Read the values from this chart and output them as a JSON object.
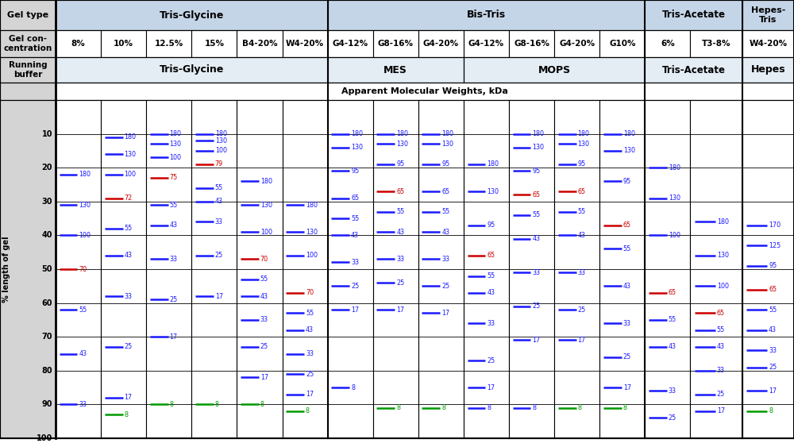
{
  "header_row1_cols": [
    "8%",
    "10%",
    "12.5%",
    "15%",
    "B4-20%",
    "W4-20%",
    "G4-12%",
    "G8-16%",
    "G4-20%",
    "G4-12%",
    "G8-16%",
    "G4-20%",
    "G10%",
    "6%",
    "T3-8%",
    "W4-20%"
  ],
  "y_ticks": [
    10,
    20,
    30,
    40,
    50,
    60,
    70,
    80,
    90,
    100
  ],
  "columns": {
    "8pct": {
      "bands": [
        {
          "y": 22,
          "kDa": 180,
          "c": "b"
        },
        {
          "y": 31,
          "kDa": 130,
          "c": "b"
        },
        {
          "y": 40,
          "kDa": 100,
          "c": "b"
        },
        {
          "y": 50,
          "kDa": 70,
          "c": "r"
        },
        {
          "y": 62,
          "kDa": 55,
          "c": "b"
        },
        {
          "y": 75,
          "kDa": 43,
          "c": "b"
        },
        {
          "y": 90,
          "kDa": 33,
          "c": "b"
        }
      ]
    },
    "10pct": {
      "bands": [
        {
          "y": 11,
          "kDa": 180,
          "c": "b"
        },
        {
          "y": 16,
          "kDa": 130,
          "c": "b"
        },
        {
          "y": 22,
          "kDa": 100,
          "c": "b"
        },
        {
          "y": 29,
          "kDa": 72,
          "c": "r"
        },
        {
          "y": 38,
          "kDa": 55,
          "c": "b"
        },
        {
          "y": 46,
          "kDa": 43,
          "c": "b"
        },
        {
          "y": 58,
          "kDa": 33,
          "c": "b"
        },
        {
          "y": 73,
          "kDa": 25,
          "c": "b"
        },
        {
          "y": 88,
          "kDa": 17,
          "c": "b"
        },
        {
          "y": 93,
          "kDa": 8,
          "c": "g"
        }
      ]
    },
    "12.5pct": {
      "bands": [
        {
          "y": 10,
          "kDa": 180,
          "c": "b"
        },
        {
          "y": 13,
          "kDa": 130,
          "c": "b"
        },
        {
          "y": 17,
          "kDa": 100,
          "c": "b"
        },
        {
          "y": 23,
          "kDa": 75,
          "c": "r"
        },
        {
          "y": 31,
          "kDa": 55,
          "c": "b"
        },
        {
          "y": 37,
          "kDa": 43,
          "c": "b"
        },
        {
          "y": 47,
          "kDa": 33,
          "c": "b"
        },
        {
          "y": 59,
          "kDa": 25,
          "c": "b"
        },
        {
          "y": 70,
          "kDa": 17,
          "c": "b"
        },
        {
          "y": 90,
          "kDa": 8,
          "c": "g"
        }
      ]
    },
    "15pct": {
      "bands": [
        {
          "y": 10,
          "kDa": 180,
          "c": "b"
        },
        {
          "y": 12,
          "kDa": 130,
          "c": "b"
        },
        {
          "y": 15,
          "kDa": 100,
          "c": "b"
        },
        {
          "y": 19,
          "kDa": 79,
          "c": "r"
        },
        {
          "y": 26,
          "kDa": 55,
          "c": "b"
        },
        {
          "y": 30,
          "kDa": 43,
          "c": "b"
        },
        {
          "y": 36,
          "kDa": 33,
          "c": "b"
        },
        {
          "y": 46,
          "kDa": 25,
          "c": "b"
        },
        {
          "y": 58,
          "kDa": 17,
          "c": "b"
        },
        {
          "y": 90,
          "kDa": 8,
          "c": "g"
        }
      ]
    },
    "B4-20pct": {
      "bands": [
        {
          "y": 24,
          "kDa": 180,
          "c": "b"
        },
        {
          "y": 31,
          "kDa": 130,
          "c": "b"
        },
        {
          "y": 39,
          "kDa": 100,
          "c": "b"
        },
        {
          "y": 47,
          "kDa": 70,
          "c": "r"
        },
        {
          "y": 53,
          "kDa": 55,
          "c": "b"
        },
        {
          "y": 58,
          "kDa": 43,
          "c": "b"
        },
        {
          "y": 65,
          "kDa": 33,
          "c": "b"
        },
        {
          "y": 73,
          "kDa": 25,
          "c": "b"
        },
        {
          "y": 82,
          "kDa": 17,
          "c": "b"
        },
        {
          "y": 90,
          "kDa": 8,
          "c": "g"
        }
      ]
    },
    "W4-20pct_tg": {
      "bands": [
        {
          "y": 31,
          "kDa": 180,
          "c": "b"
        },
        {
          "y": 39,
          "kDa": 130,
          "c": "b"
        },
        {
          "y": 46,
          "kDa": 100,
          "c": "b"
        },
        {
          "y": 57,
          "kDa": 70,
          "c": "r"
        },
        {
          "y": 63,
          "kDa": 55,
          "c": "b"
        },
        {
          "y": 68,
          "kDa": 43,
          "c": "b"
        },
        {
          "y": 75,
          "kDa": 33,
          "c": "b"
        },
        {
          "y": 81,
          "kDa": 25,
          "c": "b"
        },
        {
          "y": 87,
          "kDa": 17,
          "c": "b"
        },
        {
          "y": 92,
          "kDa": 8,
          "c": "g"
        }
      ]
    },
    "G4-12_mes": {
      "bands": [
        {
          "y": 10,
          "kDa": 180,
          "c": "b"
        },
        {
          "y": 14,
          "kDa": 130,
          "c": "b"
        },
        {
          "y": 21,
          "kDa": 95,
          "c": "b"
        },
        {
          "y": 29,
          "kDa": 65,
          "c": "b"
        },
        {
          "y": 35,
          "kDa": 55,
          "c": "b"
        },
        {
          "y": 40,
          "kDa": 43,
          "c": "b"
        },
        {
          "y": 48,
          "kDa": 33,
          "c": "b"
        },
        {
          "y": 55,
          "kDa": 25,
          "c": "b"
        },
        {
          "y": 62,
          "kDa": 17,
          "c": "b"
        },
        {
          "y": 85,
          "kDa": 8,
          "c": "b"
        }
      ]
    },
    "G8-16_mes": {
      "bands": [
        {
          "y": 10,
          "kDa": 180,
          "c": "b"
        },
        {
          "y": 13,
          "kDa": 130,
          "c": "b"
        },
        {
          "y": 19,
          "kDa": 95,
          "c": "b"
        },
        {
          "y": 27,
          "kDa": 65,
          "c": "r"
        },
        {
          "y": 33,
          "kDa": 55,
          "c": "b"
        },
        {
          "y": 39,
          "kDa": 43,
          "c": "b"
        },
        {
          "y": 47,
          "kDa": 33,
          "c": "b"
        },
        {
          "y": 54,
          "kDa": 25,
          "c": "b"
        },
        {
          "y": 62,
          "kDa": 17,
          "c": "b"
        },
        {
          "y": 91,
          "kDa": 8,
          "c": "g"
        }
      ]
    },
    "G4-20_mes": {
      "bands": [
        {
          "y": 10,
          "kDa": 180,
          "c": "b"
        },
        {
          "y": 13,
          "kDa": 130,
          "c": "b"
        },
        {
          "y": 19,
          "kDa": 95,
          "c": "b"
        },
        {
          "y": 27,
          "kDa": 65,
          "c": "b"
        },
        {
          "y": 33,
          "kDa": 55,
          "c": "b"
        },
        {
          "y": 39,
          "kDa": 43,
          "c": "b"
        },
        {
          "y": 47,
          "kDa": 33,
          "c": "b"
        },
        {
          "y": 55,
          "kDa": 25,
          "c": "b"
        },
        {
          "y": 63,
          "kDa": 17,
          "c": "b"
        },
        {
          "y": 91,
          "kDa": 8,
          "c": "g"
        }
      ]
    },
    "G4-12_mops": {
      "bands": [
        {
          "y": 19,
          "kDa": 180,
          "c": "b"
        },
        {
          "y": 27,
          "kDa": 130,
          "c": "b"
        },
        {
          "y": 37,
          "kDa": 95,
          "c": "b"
        },
        {
          "y": 46,
          "kDa": 65,
          "c": "r"
        },
        {
          "y": 52,
          "kDa": 55,
          "c": "b"
        },
        {
          "y": 57,
          "kDa": 43,
          "c": "b"
        },
        {
          "y": 66,
          "kDa": 33,
          "c": "b"
        },
        {
          "y": 77,
          "kDa": 25,
          "c": "b"
        },
        {
          "y": 85,
          "kDa": 17,
          "c": "b"
        },
        {
          "y": 91,
          "kDa": 8,
          "c": "b"
        }
      ]
    },
    "G8-16_mops": {
      "bands": [
        {
          "y": 10,
          "kDa": 180,
          "c": "b"
        },
        {
          "y": 14,
          "kDa": 130,
          "c": "b"
        },
        {
          "y": 21,
          "kDa": 95,
          "c": "b"
        },
        {
          "y": 28,
          "kDa": 65,
          "c": "r"
        },
        {
          "y": 34,
          "kDa": 55,
          "c": "b"
        },
        {
          "y": 41,
          "kDa": 43,
          "c": "b"
        },
        {
          "y": 51,
          "kDa": 33,
          "c": "b"
        },
        {
          "y": 61,
          "kDa": 25,
          "c": "b"
        },
        {
          "y": 71,
          "kDa": 17,
          "c": "b"
        },
        {
          "y": 91,
          "kDa": 8,
          "c": "b"
        }
      ]
    },
    "G4-20_mops": {
      "bands": [
        {
          "y": 10,
          "kDa": 180,
          "c": "b"
        },
        {
          "y": 13,
          "kDa": 130,
          "c": "b"
        },
        {
          "y": 19,
          "kDa": 95,
          "c": "b"
        },
        {
          "y": 27,
          "kDa": 65,
          "c": "r"
        },
        {
          "y": 33,
          "kDa": 55,
          "c": "b"
        },
        {
          "y": 40,
          "kDa": 43,
          "c": "b"
        },
        {
          "y": 51,
          "kDa": 33,
          "c": "b"
        },
        {
          "y": 62,
          "kDa": 25,
          "c": "b"
        },
        {
          "y": 71,
          "kDa": 17,
          "c": "b"
        },
        {
          "y": 91,
          "kDa": 8,
          "c": "g"
        }
      ]
    },
    "G10_mops": {
      "bands": [
        {
          "y": 10,
          "kDa": 180,
          "c": "b"
        },
        {
          "y": 15,
          "kDa": 130,
          "c": "b"
        },
        {
          "y": 24,
          "kDa": 95,
          "c": "b"
        },
        {
          "y": 37,
          "kDa": 65,
          "c": "r"
        },
        {
          "y": 44,
          "kDa": 55,
          "c": "b"
        },
        {
          "y": 55,
          "kDa": 43,
          "c": "b"
        },
        {
          "y": 66,
          "kDa": 33,
          "c": "b"
        },
        {
          "y": 76,
          "kDa": 25,
          "c": "b"
        },
        {
          "y": 85,
          "kDa": 17,
          "c": "b"
        },
        {
          "y": 91,
          "kDa": 8,
          "c": "g"
        }
      ]
    },
    "6pct_ta": {
      "bands": [
        {
          "y": 20,
          "kDa": 180,
          "c": "b"
        },
        {
          "y": 29,
          "kDa": 130,
          "c": "b"
        },
        {
          "y": 40,
          "kDa": 100,
          "c": "b"
        },
        {
          "y": 57,
          "kDa": 65,
          "c": "r"
        },
        {
          "y": 65,
          "kDa": 55,
          "c": "b"
        },
        {
          "y": 73,
          "kDa": 43,
          "c": "b"
        },
        {
          "y": 86,
          "kDa": 33,
          "c": "b"
        },
        {
          "y": 94,
          "kDa": 25,
          "c": "b"
        }
      ]
    },
    "T3-8_ta": {
      "bands": [
        {
          "y": 36,
          "kDa": 180,
          "c": "b"
        },
        {
          "y": 46,
          "kDa": 130,
          "c": "b"
        },
        {
          "y": 55,
          "kDa": 100,
          "c": "b"
        },
        {
          "y": 63,
          "kDa": 65,
          "c": "r"
        },
        {
          "y": 68,
          "kDa": 55,
          "c": "b"
        },
        {
          "y": 73,
          "kDa": 43,
          "c": "b"
        },
        {
          "y": 80,
          "kDa": 33,
          "c": "b"
        },
        {
          "y": 87,
          "kDa": 25,
          "c": "b"
        },
        {
          "y": 92,
          "kDa": 17,
          "c": "b"
        }
      ]
    },
    "W4-20_hepes": {
      "bands": [
        {
          "y": 37,
          "kDa": 170,
          "c": "b"
        },
        {
          "y": 43,
          "kDa": 125,
          "c": "b"
        },
        {
          "y": 49,
          "kDa": 95,
          "c": "b"
        },
        {
          "y": 56,
          "kDa": 65,
          "c": "r"
        },
        {
          "y": 62,
          "kDa": 55,
          "c": "b"
        },
        {
          "y": 68,
          "kDa": 43,
          "c": "b"
        },
        {
          "y": 74,
          "kDa": 33,
          "c": "b"
        },
        {
          "y": 79,
          "kDa": 25,
          "c": "b"
        },
        {
          "y": 86,
          "kDa": 17,
          "c": "b"
        },
        {
          "y": 92,
          "kDa": 8,
          "c": "g"
        }
      ]
    }
  },
  "bg_blue": "#c5d5e8",
  "bg_gray": "#d4d4d4",
  "bg_light": "#e4ecf4",
  "bg_white": "#ffffff"
}
